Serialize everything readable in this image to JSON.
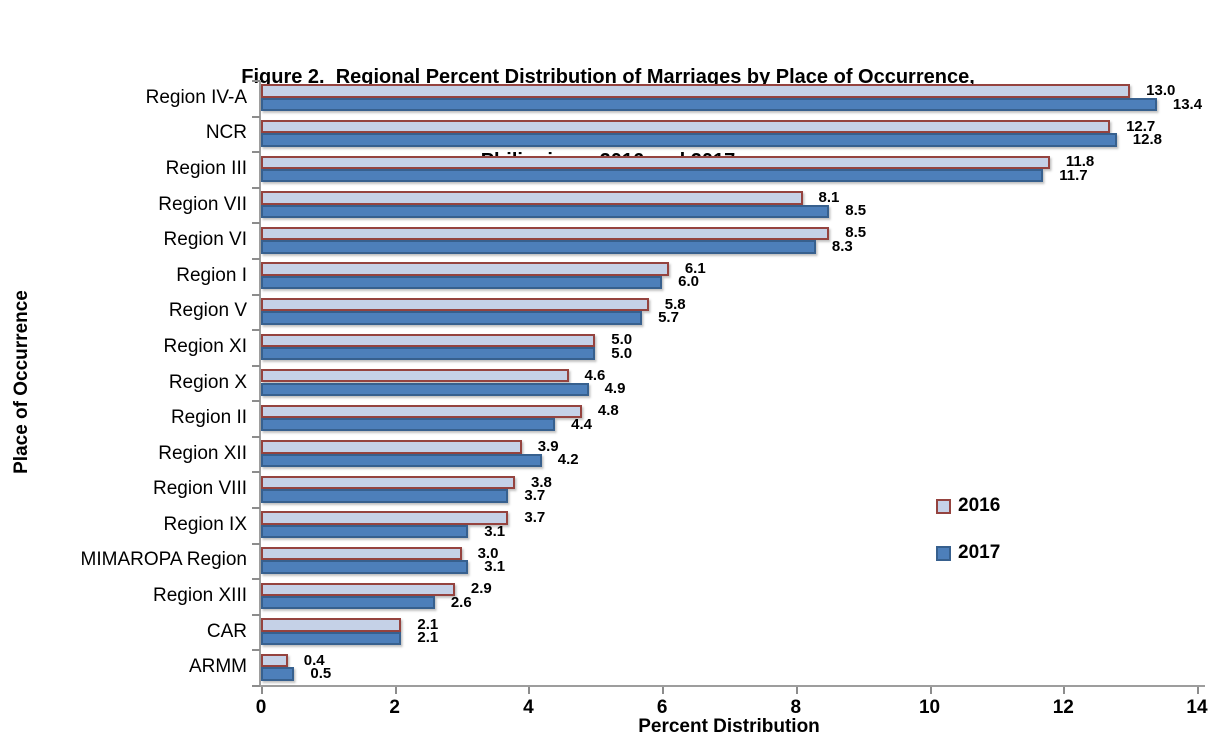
{
  "header": {
    "line1": "Figure 2.  Regional Percent Distribution of Marriages by Place of Occurrence,",
    "line2": "Philippines: 2016 and 2017"
  },
  "axes": {
    "x_label": "Percent Distribution",
    "y_label": "Place of Occurrence",
    "x_ticks": [
      0,
      2,
      4,
      6,
      8,
      10,
      12,
      14
    ]
  },
  "colors": {
    "bar_2016_fill": "#c5d1e7",
    "bar_2016_border": "#95433f",
    "bar_2017_fill": "#4d7fba",
    "bar_2017_border": "#37608e",
    "axis_line": "#9d9d9d",
    "tick": "#8c8c8c",
    "text": "#000000",
    "background": "#ffffff"
  },
  "legend": {
    "entries": [
      "2016",
      "2017"
    ]
  },
  "chart_data": {
    "type": "bar",
    "orientation": "horizontal",
    "title": "Figure 2. Regional Percent Distribution of Marriages by Place of Occurrence, Philippines: 2016 and 2017",
    "xlabel": "Percent Distribution",
    "ylabel": "Place of Occurrence",
    "xlim": [
      0,
      14
    ],
    "grid": false,
    "legend_position": "center-right",
    "value_label_format": "one-decimal",
    "categories": [
      "Region IV-A",
      "NCR",
      "Region III",
      "Region VII",
      "Region VI",
      "Region I",
      "Region V",
      "Region XI",
      "Region X",
      "Region II",
      "Region XII",
      "Region VIII",
      "Region IX",
      "MIMAROPA Region",
      "Region XIII",
      "CAR",
      "ARMM"
    ],
    "series": [
      {
        "name": "2016",
        "fill": "#c5d1e7",
        "border": "#95433f",
        "values": [
          13.0,
          12.7,
          11.8,
          8.1,
          8.5,
          6.1,
          5.8,
          5.0,
          4.6,
          4.8,
          3.9,
          3.8,
          3.7,
          3.0,
          2.9,
          2.1,
          0.4
        ]
      },
      {
        "name": "2017",
        "fill": "#4d7fba",
        "border": "#37608e",
        "values": [
          13.4,
          12.8,
          11.7,
          8.5,
          8.3,
          6.0,
          5.7,
          5.0,
          4.9,
          4.4,
          4.2,
          3.7,
          3.1,
          3.1,
          2.6,
          2.1,
          0.5
        ]
      }
    ]
  }
}
